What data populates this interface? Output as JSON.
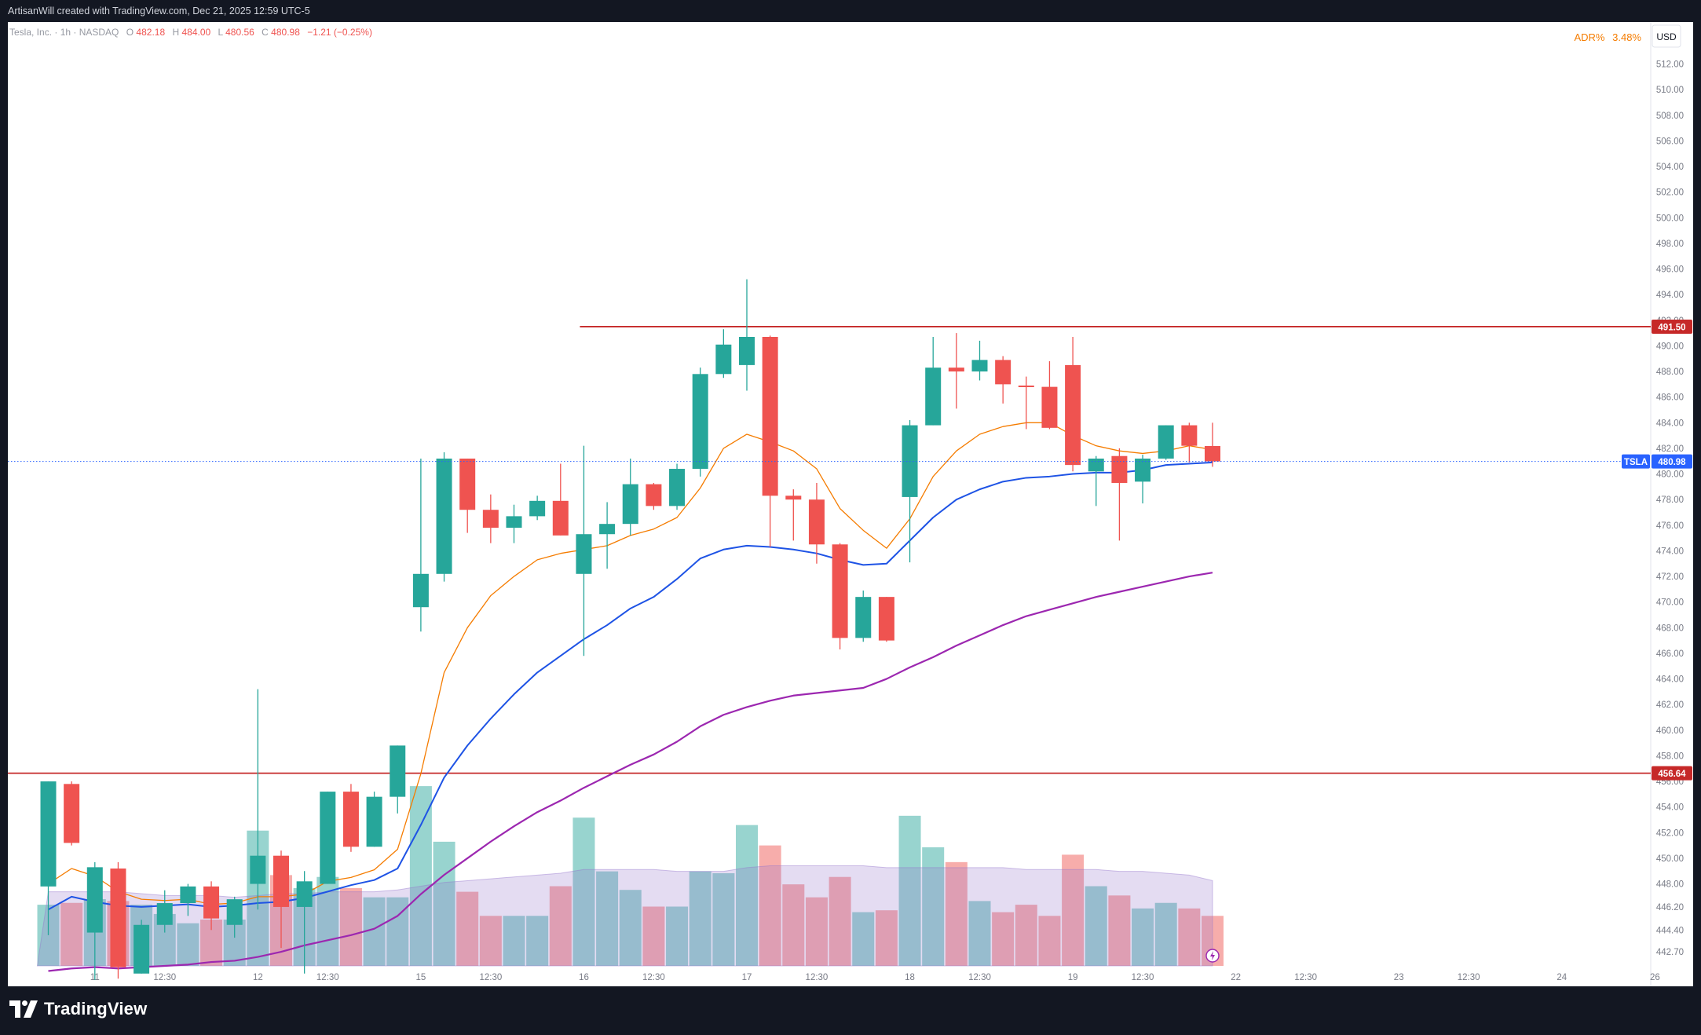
{
  "header": {
    "credit": "ArtisanWill created with TradingView.com, Dec 21, 2025 12:59 UTC-5"
  },
  "legend": {
    "symbol": "Tesla, Inc. · 1h · NASDAQ",
    "open_label": "O",
    "open": "482.18",
    "high_label": "H",
    "high": "484.00",
    "low_label": "L",
    "low": "480.56",
    "close_label": "C",
    "close": "480.98",
    "change": "−1.21 (−0.25%)"
  },
  "indicator": {
    "label": "ADR%",
    "value": "3.48%"
  },
  "currency": "USD",
  "footer": {
    "brand": "TradingView"
  },
  "colors": {
    "up": "#26a69a",
    "down": "#ef5350",
    "vol_up": "#92d2cc",
    "vol_down": "#f7a9a7",
    "ema_fast": "#f57c00",
    "ema_mid": "#1e53e5",
    "ema_slow": "#9c27b0",
    "level": "#c62828",
    "last_price_tag": "#2962ff"
  },
  "chart_data": {
    "type": "candlestick",
    "ticker": "TSLA",
    "last_price": 480.98,
    "ylim": [
      441.2,
      513.7
    ],
    "y_ticks": [
      512.0,
      510.0,
      508.0,
      506.0,
      504.0,
      502.0,
      500.0,
      498.0,
      496.0,
      494.0,
      492.0,
      490.0,
      488.0,
      486.0,
      484.0,
      482.0,
      480.0,
      478.0,
      476.0,
      474.0,
      472.0,
      470.0,
      468.0,
      466.0,
      464.0,
      462.0,
      460.0,
      458.0,
      456.0,
      454.0,
      452.0,
      450.0,
      448.0,
      446.2,
      444.4,
      442.7
    ],
    "x_labels": [
      {
        "label": "11",
        "bar": 2
      },
      {
        "label": "12:30",
        "bar": 5
      },
      {
        "label": "12",
        "bar": 9
      },
      {
        "label": "12:30",
        "bar": 12
      },
      {
        "label": "15",
        "bar": 16
      },
      {
        "label": "12:30",
        "bar": 19
      },
      {
        "label": "16",
        "bar": 23
      },
      {
        "label": "12:30",
        "bar": 26
      },
      {
        "label": "17",
        "bar": 30
      },
      {
        "label": "12:30",
        "bar": 33
      },
      {
        "label": "18",
        "bar": 37
      },
      {
        "label": "12:30",
        "bar": 40
      },
      {
        "label": "19",
        "bar": 44
      },
      {
        "label": "12:30",
        "bar": 47
      },
      {
        "label": "22",
        "bar": 51
      },
      {
        "label": "12:30",
        "bar": 54
      },
      {
        "label": "23",
        "bar": 58
      },
      {
        "label": "12:30",
        "bar": 61
      },
      {
        "label": "24",
        "bar": 65
      },
      {
        "label": "26",
        "bar": 69
      }
    ],
    "horizontal_levels": [
      {
        "price": 491.5,
        "label": "491.50",
        "from_bar": 23
      },
      {
        "price": 456.64,
        "label": "456.64",
        "from_bar": -1
      }
    ],
    "candles": [
      {
        "o": 447.8,
        "h": 456.0,
        "l": 444.0,
        "c": 456.0,
        "v": 33
      },
      {
        "o": 455.8,
        "h": 456.0,
        "l": 451.0,
        "c": 451.2,
        "v": 34
      },
      {
        "o": 444.2,
        "h": 449.7,
        "l": 440.5,
        "c": 449.3,
        "v": 36
      },
      {
        "o": 449.2,
        "h": 449.7,
        "l": 440.6,
        "c": 441.5,
        "v": 35
      },
      {
        "o": 441.0,
        "h": 445.2,
        "l": 441.0,
        "c": 444.8,
        "v": 33
      },
      {
        "o": 444.8,
        "h": 447.5,
        "l": 444.2,
        "c": 446.5,
        "v": 28
      },
      {
        "o": 446.5,
        "h": 448.0,
        "l": 445.5,
        "c": 447.8,
        "v": 23
      },
      {
        "o": 447.8,
        "h": 448.2,
        "l": 444.4,
        "c": 445.3,
        "v": 25
      },
      {
        "o": 444.8,
        "h": 447.0,
        "l": 443.8,
        "c": 446.8,
        "v": 25
      },
      {
        "o": 448.0,
        "h": 463.2,
        "l": 446.0,
        "c": 450.2,
        "v": 73
      },
      {
        "o": 450.2,
        "h": 450.6,
        "l": 443.0,
        "c": 446.2,
        "v": 49
      },
      {
        "o": 446.2,
        "h": 449.0,
        "l": 441.0,
        "c": 448.2,
        "v": 42
      },
      {
        "o": 448.0,
        "h": 455.2,
        "l": 448.0,
        "c": 455.2,
        "v": 48
      },
      {
        "o": 455.2,
        "h": 455.8,
        "l": 450.5,
        "c": 450.9,
        "v": 42
      },
      {
        "o": 450.9,
        "h": 455.2,
        "l": 450.9,
        "c": 454.8,
        "v": 37
      },
      {
        "o": 454.8,
        "h": 458.8,
        "l": 453.5,
        "c": 458.8,
        "v": 37
      },
      {
        "o": 469.6,
        "h": 481.2,
        "l": 467.7,
        "c": 472.2,
        "v": 97
      },
      {
        "o": 472.2,
        "h": 481.7,
        "l": 471.6,
        "c": 481.2,
        "v": 67
      },
      {
        "o": 481.2,
        "h": 481.2,
        "l": 475.4,
        "c": 477.2,
        "v": 40
      },
      {
        "o": 477.2,
        "h": 478.4,
        "l": 474.6,
        "c": 475.8,
        "v": 27
      },
      {
        "o": 475.8,
        "h": 477.6,
        "l": 474.6,
        "c": 476.7,
        "v": 27
      },
      {
        "o": 476.7,
        "h": 478.3,
        "l": 476.4,
        "c": 477.9,
        "v": 27
      },
      {
        "o": 477.9,
        "h": 480.8,
        "l": 475.2,
        "c": 475.2,
        "v": 43
      },
      {
        "o": 472.2,
        "h": 482.2,
        "l": 465.8,
        "c": 475.3,
        "v": 80
      },
      {
        "o": 475.3,
        "h": 477.8,
        "l": 472.6,
        "c": 476.1,
        "v": 51
      },
      {
        "o": 476.1,
        "h": 481.2,
        "l": 475.2,
        "c": 479.2,
        "v": 41
      },
      {
        "o": 479.2,
        "h": 479.3,
        "l": 477.2,
        "c": 477.5,
        "v": 32
      },
      {
        "o": 477.5,
        "h": 480.8,
        "l": 477.2,
        "c": 480.4,
        "v": 32
      },
      {
        "o": 480.4,
        "h": 488.3,
        "l": 479.8,
        "c": 487.8,
        "v": 51
      },
      {
        "o": 487.8,
        "h": 491.3,
        "l": 487.5,
        "c": 490.1,
        "v": 50
      },
      {
        "o": 488.5,
        "h": 495.2,
        "l": 486.5,
        "c": 490.7,
        "v": 76
      },
      {
        "o": 490.7,
        "h": 490.8,
        "l": 474.3,
        "c": 478.3,
        "v": 65
      },
      {
        "o": 478.3,
        "h": 478.8,
        "l": 474.8,
        "c": 478.0,
        "v": 44
      },
      {
        "o": 478.0,
        "h": 479.3,
        "l": 473.0,
        "c": 474.5,
        "v": 37
      },
      {
        "o": 474.5,
        "h": 474.6,
        "l": 466.3,
        "c": 467.2,
        "v": 48
      },
      {
        "o": 467.2,
        "h": 470.9,
        "l": 466.9,
        "c": 470.4,
        "v": 29
      },
      {
        "o": 470.4,
        "h": 470.4,
        "l": 466.9,
        "c": 467.0,
        "v": 30
      },
      {
        "o": 478.2,
        "h": 484.2,
        "l": 473.1,
        "c": 483.8,
        "v": 81
      },
      {
        "o": 483.8,
        "h": 490.7,
        "l": 483.8,
        "c": 488.3,
        "v": 64
      },
      {
        "o": 488.3,
        "h": 491.0,
        "l": 485.1,
        "c": 488.0,
        "v": 56
      },
      {
        "o": 488.0,
        "h": 490.4,
        "l": 487.3,
        "c": 488.9,
        "v": 35
      },
      {
        "o": 488.9,
        "h": 489.2,
        "l": 485.5,
        "c": 487.0,
        "v": 29
      },
      {
        "o": 486.9,
        "h": 487.6,
        "l": 483.5,
        "c": 486.8,
        "v": 33
      },
      {
        "o": 486.8,
        "h": 488.8,
        "l": 483.5,
        "c": 483.6,
        "v": 27
      },
      {
        "o": 488.5,
        "h": 490.7,
        "l": 480.2,
        "c": 480.7,
        "v": 60
      },
      {
        "o": 480.2,
        "h": 481.4,
        "l": 477.5,
        "c": 481.2,
        "v": 43
      },
      {
        "o": 481.4,
        "h": 482.0,
        "l": 474.8,
        "c": 479.3,
        "v": 38
      },
      {
        "o": 479.4,
        "h": 481.5,
        "l": 477.7,
        "c": 481.2,
        "v": 31
      },
      {
        "o": 481.2,
        "h": 483.8,
        "l": 481.1,
        "c": 483.8,
        "v": 34
      },
      {
        "o": 483.8,
        "h": 484.0,
        "l": 480.9,
        "c": 482.2,
        "v": 31
      },
      {
        "o": 482.18,
        "h": 484.0,
        "l": 480.56,
        "c": 480.98,
        "v": 27
      }
    ],
    "ema_fast": [
      448.0,
      449.2,
      448.6,
      447.4,
      446.8,
      446.7,
      446.8,
      446.4,
      446.5,
      447.0,
      447.0,
      447.2,
      448.2,
      448.5,
      449.1,
      450.7,
      456.6,
      464.5,
      468.0,
      470.5,
      472.0,
      473.3,
      473.8,
      474.1,
      474.4,
      475.2,
      475.7,
      476.6,
      478.9,
      482.0,
      483.1,
      482.5,
      481.8,
      480.4,
      477.3,
      475.6,
      474.2,
      476.5,
      479.8,
      481.8,
      483.1,
      483.7,
      484.0,
      484.0,
      483.0,
      482.2,
      481.8,
      481.6,
      481.8,
      482.2,
      481.9
    ],
    "ema_mid": [
      446.0,
      447.0,
      446.6,
      446.3,
      446.2,
      446.3,
      446.4,
      446.2,
      446.3,
      446.5,
      446.6,
      446.9,
      447.4,
      447.9,
      448.3,
      449.2,
      452.6,
      456.3,
      458.8,
      460.9,
      462.8,
      464.5,
      465.8,
      467.1,
      468.2,
      469.5,
      470.4,
      471.8,
      473.4,
      474.1,
      474.4,
      474.3,
      474.1,
      473.8,
      473.3,
      472.9,
      473.0,
      474.8,
      476.6,
      478.0,
      478.8,
      479.4,
      479.7,
      479.8,
      480.0,
      480.1,
      480.1,
      480.3,
      480.7,
      480.8,
      480.9
    ],
    "ema_slow": [
      441.2,
      441.4,
      441.5,
      441.4,
      441.5,
      441.6,
      441.7,
      441.9,
      442.0,
      442.3,
      442.7,
      443.2,
      443.6,
      444.0,
      444.5,
      445.5,
      447.2,
      448.7,
      450.0,
      451.3,
      452.5,
      453.6,
      454.5,
      455.5,
      456.4,
      457.3,
      458.1,
      459.1,
      460.3,
      461.2,
      461.8,
      462.3,
      462.7,
      462.9,
      463.1,
      463.3,
      464.0,
      464.9,
      465.7,
      466.6,
      467.4,
      468.2,
      468.9,
      469.4,
      469.9,
      470.4,
      470.8,
      471.2,
      471.6,
      472.0,
      472.3
    ],
    "volume_ma": [
      40,
      40,
      40,
      40,
      39,
      38,
      38,
      38,
      37,
      38,
      39,
      39,
      40,
      40,
      40,
      41,
      43,
      45,
      46,
      47,
      48,
      49,
      50,
      52,
      52,
      52,
      52,
      51,
      51,
      51,
      53,
      54,
      54,
      54,
      54,
      54,
      53,
      53,
      53,
      53,
      53,
      53,
      52,
      52,
      52,
      52,
      51,
      51,
      50,
      49,
      46
    ]
  }
}
